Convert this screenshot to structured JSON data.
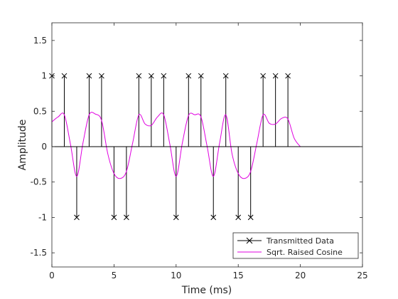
{
  "chart_data": {
    "type": "line",
    "title": "",
    "xlabel": "Time (ms)",
    "ylabel": "Amplitude",
    "xlim": [
      0,
      25
    ],
    "ylim": [
      -1.7,
      1.75
    ],
    "xticks": [
      0,
      5,
      10,
      15,
      20,
      25
    ],
    "yticks": [
      -1.5,
      -1,
      -0.5,
      0,
      0.5,
      1,
      1.5
    ],
    "xtick_labels": [
      "0",
      "5",
      "10",
      "15",
      "20",
      "25"
    ],
    "ytick_labels": [
      "-1.5",
      "-1",
      "-0.5",
      "0",
      "0.5",
      "1",
      "1.5"
    ],
    "grid": false,
    "legend_position": "bottom-right",
    "series": [
      {
        "name": "Transmitted Data",
        "style": "stem",
        "marker": "x",
        "color": "#000000",
        "x": [
          0,
          1,
          2,
          3,
          4,
          5,
          6,
          7,
          8,
          9,
          10,
          11,
          12,
          13,
          14,
          15,
          16,
          17,
          18,
          19
        ],
        "values": [
          1,
          1,
          -1,
          1,
          1,
          -1,
          -1,
          1,
          1,
          1,
          -1,
          1,
          1,
          -1,
          1,
          -1,
          -1,
          1,
          1,
          1
        ]
      },
      {
        "name": "Sqrt. Raised Cosine",
        "style": "line",
        "color": "#e000e0",
        "x": [
          0,
          0.5,
          1,
          1.5,
          2,
          2.5,
          3,
          3.5,
          4,
          4.5,
          5,
          5.5,
          6,
          6.5,
          7,
          7.5,
          8,
          8.5,
          9,
          9.5,
          10,
          10.5,
          11,
          11.5,
          12,
          12.5,
          13,
          13.5,
          14,
          14.5,
          15,
          15.5,
          16,
          16.5,
          17,
          17.5,
          18,
          18.5,
          19,
          19.5,
          20
        ],
        "values": [
          0.35,
          0.42,
          0.45,
          0.03,
          -0.42,
          0.05,
          0.45,
          0.46,
          0.37,
          -0.1,
          -0.38,
          -0.45,
          -0.35,
          0.05,
          0.45,
          0.32,
          0.3,
          0.42,
          0.45,
          0.03,
          -0.42,
          0.05,
          0.44,
          0.45,
          0.42,
          0.0,
          -0.42,
          0.05,
          0.45,
          -0.1,
          -0.38,
          -0.45,
          -0.35,
          0.05,
          0.45,
          0.33,
          0.32,
          0.4,
          0.39,
          0.12,
          0.0
        ]
      }
    ]
  }
}
